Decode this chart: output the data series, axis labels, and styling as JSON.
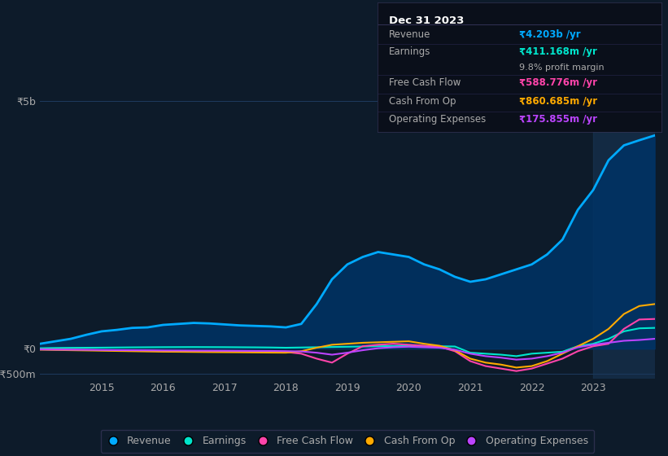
{
  "background_color": "#0d1b2a",
  "plot_bg_color": "#0d1b2a",
  "grid_color": "#1e3a5f",
  "text_color": "#aaaaaa",
  "title_color": "#ffffff",
  "years": [
    2014.0,
    2014.25,
    2014.5,
    2014.75,
    2015.0,
    2015.25,
    2015.5,
    2015.75,
    2016.0,
    2016.25,
    2016.5,
    2016.75,
    2017.0,
    2017.25,
    2017.5,
    2017.75,
    2018.0,
    2018.25,
    2018.5,
    2018.75,
    2019.0,
    2019.25,
    2019.5,
    2019.75,
    2020.0,
    2020.25,
    2020.5,
    2020.75,
    2021.0,
    2021.25,
    2021.5,
    2021.75,
    2022.0,
    2022.25,
    2022.5,
    2022.75,
    2023.0,
    2023.25,
    2023.5,
    2023.75,
    2024.0
  ],
  "revenue": [
    100,
    150,
    200,
    280,
    350,
    380,
    420,
    430,
    480,
    500,
    520,
    510,
    490,
    470,
    460,
    450,
    430,
    500,
    900,
    1400,
    1700,
    1850,
    1950,
    1900,
    1850,
    1700,
    1600,
    1450,
    1350,
    1400,
    1500,
    1600,
    1700,
    1900,
    2200,
    2800,
    3200,
    3800,
    4100,
    4203,
    4300
  ],
  "earnings": [
    10,
    15,
    18,
    20,
    22,
    25,
    28,
    30,
    32,
    33,
    34,
    33,
    32,
    30,
    28,
    25,
    20,
    25,
    30,
    35,
    40,
    45,
    50,
    55,
    60,
    55,
    50,
    45,
    -80,
    -100,
    -120,
    -150,
    -100,
    -80,
    -60,
    50,
    100,
    200,
    350,
    411,
    420
  ],
  "free_cash_flow": [
    -10,
    -15,
    -20,
    -25,
    -30,
    -35,
    -38,
    -40,
    -45,
    -48,
    -50,
    -52,
    -55,
    -58,
    -60,
    -62,
    -65,
    -100,
    -200,
    -280,
    -100,
    50,
    80,
    100,
    80,
    60,
    40,
    -50,
    -250,
    -350,
    -400,
    -450,
    -400,
    -300,
    -200,
    -50,
    50,
    100,
    400,
    589,
    600
  ],
  "cash_from_op": [
    -20,
    -25,
    -30,
    -35,
    -40,
    -45,
    -50,
    -55,
    -60,
    -62,
    -65,
    -68,
    -70,
    -72,
    -75,
    -78,
    -80,
    -50,
    20,
    80,
    100,
    120,
    130,
    140,
    150,
    100,
    60,
    -30,
    -200,
    -280,
    -320,
    -380,
    -350,
    -250,
    -100,
    50,
    200,
    400,
    700,
    861,
    900
  ],
  "operating_expenses": [
    -15,
    -18,
    -20,
    -22,
    -25,
    -28,
    -30,
    -32,
    -35,
    -36,
    -38,
    -39,
    -40,
    -42,
    -44,
    -45,
    -48,
    -55,
    -80,
    -120,
    -80,
    -30,
    10,
    30,
    40,
    30,
    20,
    -20,
    -100,
    -150,
    -180,
    -220,
    -200,
    -150,
    -80,
    30,
    80,
    120,
    160,
    176,
    200
  ],
  "revenue_color": "#00aaff",
  "earnings_color": "#00e5cc",
  "free_cash_flow_color": "#ff44aa",
  "cash_from_op_color": "#ffaa00",
  "operating_expenses_color": "#bb44ff",
  "revenue_fill_color": "#003366",
  "ylim_min": -600,
  "ylim_max": 5100,
  "yticks": [
    -500,
    0,
    5000
  ],
  "ytick_labels": [
    "-₹500m",
    "₹0",
    "₹5b"
  ],
  "xticks": [
    2015,
    2016,
    2017,
    2018,
    2019,
    2020,
    2021,
    2022,
    2023
  ],
  "info_box": {
    "date": "Dec 31 2023",
    "revenue_label": "Revenue",
    "revenue_value": "₹4.203b /yr",
    "revenue_color": "#00aaff",
    "earnings_label": "Earnings",
    "earnings_value": "₹411.168m /yr",
    "earnings_color": "#00e5cc",
    "margin_value": "9.8% profit margin",
    "fcf_label": "Free Cash Flow",
    "fcf_value": "₹588.776m /yr",
    "fcf_color": "#ff44aa",
    "cashop_label": "Cash From Op",
    "cashop_value": "₹860.685m /yr",
    "cashop_color": "#ffaa00",
    "opex_label": "Operating Expenses",
    "opex_value": "₹175.855m /yr",
    "opex_color": "#bb44ff"
  },
  "legend_items": [
    {
      "label": "Revenue",
      "color": "#00aaff"
    },
    {
      "label": "Earnings",
      "color": "#00e5cc"
    },
    {
      "label": "Free Cash Flow",
      "color": "#ff44aa"
    },
    {
      "label": "Cash From Op",
      "color": "#ffaa00"
    },
    {
      "label": "Operating Expenses",
      "color": "#bb44ff"
    }
  ]
}
